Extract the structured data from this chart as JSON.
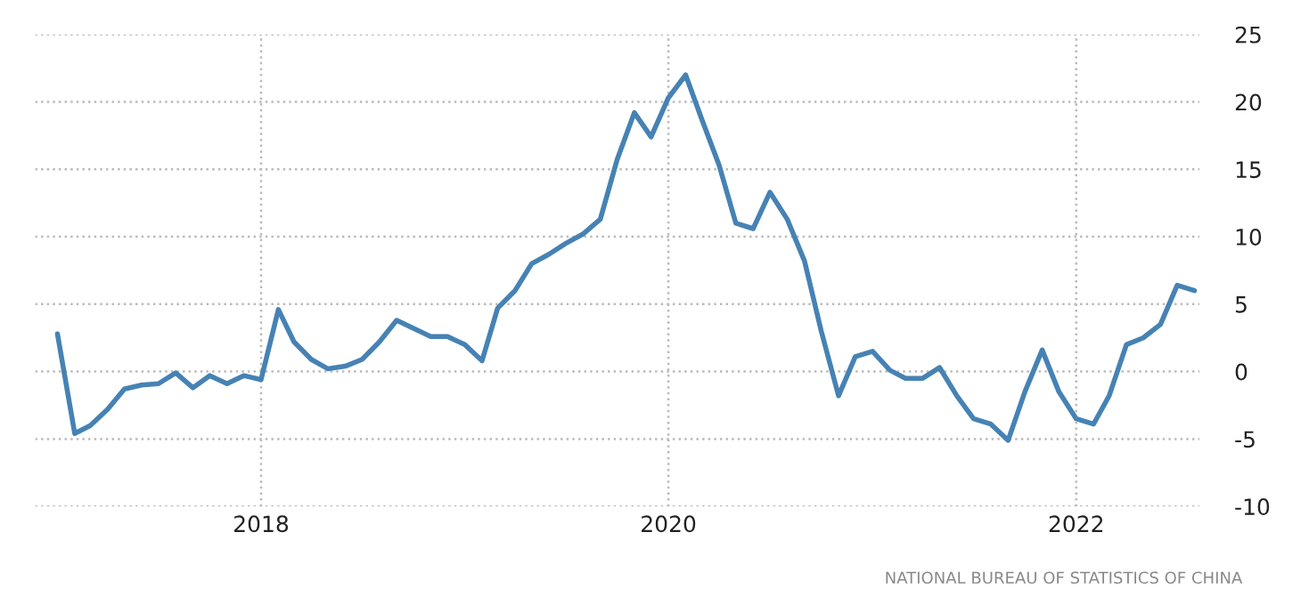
{
  "chart_data": {
    "type": "line",
    "x": [
      "2017-01",
      "2017-02",
      "2017-03",
      "2017-04",
      "2017-05",
      "2017-06",
      "2017-07",
      "2017-08",
      "2017-09",
      "2017-10",
      "2017-11",
      "2017-12",
      "2018-01",
      "2018-02",
      "2018-03",
      "2018-04",
      "2018-05",
      "2018-06",
      "2018-07",
      "2018-08",
      "2018-09",
      "2018-10",
      "2018-11",
      "2018-12",
      "2019-01",
      "2019-02",
      "2019-03",
      "2019-04",
      "2019-05",
      "2019-06",
      "2019-07",
      "2019-08",
      "2019-09",
      "2019-10",
      "2019-11",
      "2019-12",
      "2020-01",
      "2020-02",
      "2020-03",
      "2020-04",
      "2020-05",
      "2020-06",
      "2020-07",
      "2020-08",
      "2020-09",
      "2020-10",
      "2020-11",
      "2020-12",
      "2021-01",
      "2021-02",
      "2021-03",
      "2021-04",
      "2021-05",
      "2021-06",
      "2021-07",
      "2021-08",
      "2021-09",
      "2021-10",
      "2021-11",
      "2021-12",
      "2022-01",
      "2022-02",
      "2022-03",
      "2022-04",
      "2022-05",
      "2022-06",
      "2022-07",
      "2022-08"
    ],
    "series": [
      {
        "color": "#4682b4",
        "values": [
          2.8,
          -4.6,
          -4.0,
          -2.8,
          -1.3,
          -1.0,
          -0.9,
          -0.1,
          -1.2,
          -0.3,
          -0.9,
          -0.3,
          -0.6,
          4.6,
          2.2,
          0.9,
          0.2,
          0.4,
          0.9,
          2.2,
          3.8,
          3.2,
          2.6,
          2.6,
          2.0,
          0.8,
          4.7,
          6.0,
          8.0,
          8.7,
          9.5,
          10.2,
          11.3,
          15.7,
          19.2,
          17.4,
          20.3,
          22.0,
          18.7,
          15.3,
          11.0,
          10.6,
          13.3,
          11.3,
          8.2,
          3.0,
          -1.8,
          1.1,
          1.5,
          0.1,
          -0.5,
          -0.5,
          0.3,
          -1.8,
          -3.5,
          -3.9,
          -5.1,
          -1.5,
          1.6,
          -1.5,
          -3.5,
          -3.9,
          -1.8,
          2.0,
          2.5,
          3.5,
          6.4,
          6.0
        ]
      }
    ],
    "xlim": [
      "2016-11-22",
      "2022-08-10"
    ],
    "xticks": [
      {
        "value": "2018-01-01",
        "label": "2018"
      },
      {
        "value": "2020-01-01",
        "label": "2020"
      },
      {
        "value": "2022-01-01",
        "label": "2022"
      }
    ],
    "ylim": [
      -10,
      25
    ],
    "yticks": [
      -10,
      -5,
      0,
      5,
      10,
      15,
      20,
      25
    ],
    "grid": true,
    "annotations": [
      "NATIONAL BUREAU OF STATISTICS OF CHINA"
    ]
  }
}
